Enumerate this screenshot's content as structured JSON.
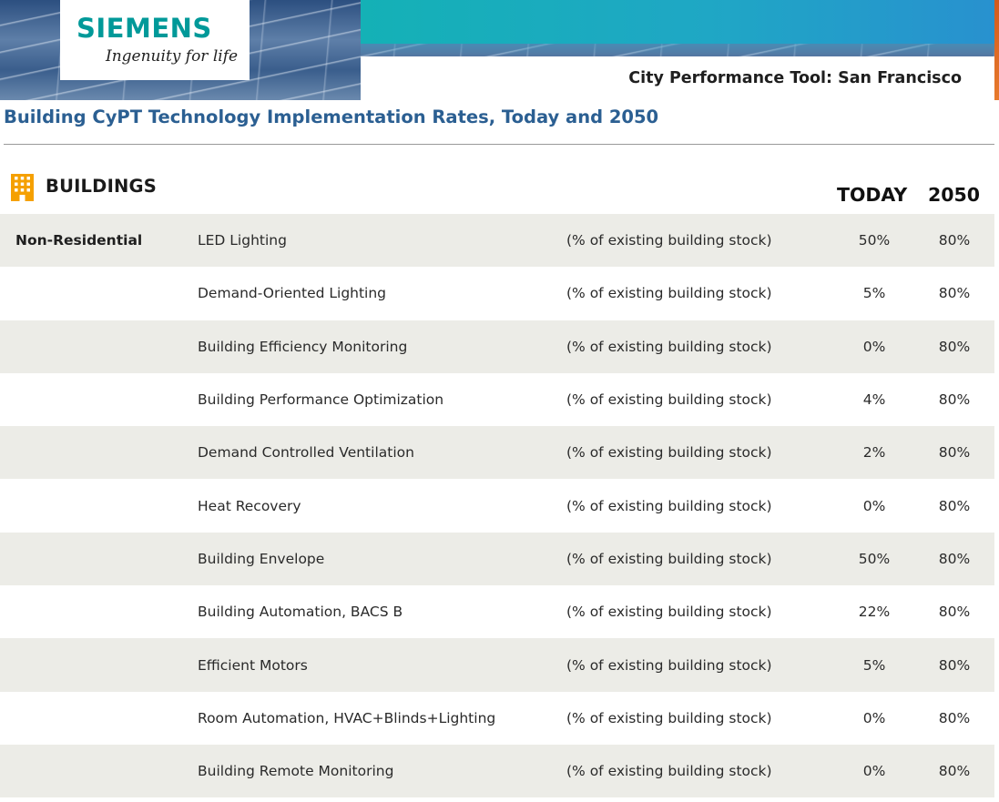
{
  "header": {
    "brand": "SIEMENS",
    "tagline": "Ingenuity for life",
    "tool_title": "City Performance Tool: San Francisco"
  },
  "page_title": "Building CyPT Technology Implementation Rates, Today and 2050",
  "section": {
    "icon": "building-icon",
    "label": "BUILDINGS",
    "columns": {
      "today": "TODAY",
      "y2050": "2050"
    }
  },
  "colors": {
    "brand_teal": "#009999",
    "heading_blue": "#2b5f92",
    "icon_orange": "#f5a000",
    "row_shade": "#ecece7"
  },
  "rows": [
    {
      "category": "Non-Residential",
      "technology": "LED Lighting",
      "unit": "(% of existing building stock)",
      "today": "50%",
      "y2050": "80%"
    },
    {
      "category": "",
      "technology": "Demand-Oriented Lighting",
      "unit": "(% of existing building stock)",
      "today": "5%",
      "y2050": "80%"
    },
    {
      "category": "",
      "technology": "Building Efficiency Monitoring",
      "unit": "(% of existing building stock)",
      "today": "0%",
      "y2050": "80%"
    },
    {
      "category": "",
      "technology": "Building Performance Optimization",
      "unit": "(% of existing building stock)",
      "today": "4%",
      "y2050": "80%"
    },
    {
      "category": "",
      "technology": "Demand Controlled Ventilation",
      "unit": "(% of existing building stock)",
      "today": "2%",
      "y2050": "80%"
    },
    {
      "category": "",
      "technology": "Heat Recovery",
      "unit": "(% of existing building stock)",
      "today": "0%",
      "y2050": "80%"
    },
    {
      "category": "",
      "technology": "Building Envelope",
      "unit": "(% of existing building stock)",
      "today": "50%",
      "y2050": "80%"
    },
    {
      "category": "",
      "technology": "Building Automation, BACS B",
      "unit": "(% of existing building stock)",
      "today": "22%",
      "y2050": "80%"
    },
    {
      "category": "",
      "technology": "Efficient Motors",
      "unit": "(% of existing building stock)",
      "today": "5%",
      "y2050": "80%"
    },
    {
      "category": "",
      "technology": "Room Automation, HVAC+Blinds+Lighting",
      "unit": "(% of existing building stock)",
      "today": "0%",
      "y2050": "80%"
    },
    {
      "category": "",
      "technology": "Building Remote Monitoring",
      "unit": "(% of existing building stock)",
      "today": "0%",
      "y2050": "80%"
    }
  ]
}
